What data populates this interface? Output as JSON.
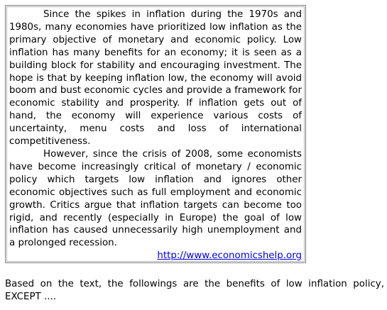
{
  "passage": {
    "paragraphs": [
      "Since the spikes in inflation during the 1970s and 1980s, many economies have prioritized low inflation as the primary objective of monetary and economic policy. Low inflation has many benefits for an economy; it is seen as a building block for stability and encouraging investment. The hope is that by keeping inflation low, the economy will avoid boom and bust economic cycles and provide a framework for economic stability and prosperity. If inflation gets out of hand, the economy will experience various costs of uncertainty, menu costs and loss of international competitiveness.",
      "However, since the crisis of 2008, some economists have become increasingly critical of monetary / economic policy which targets low inflation and ignores other economic objectives such as full employment and economic growth. Critics argue that inflation targets can become too rigid, and recently (especially in Europe) the goal of low inflation has caused unnecessarily high unemployment and a prolonged recession."
    ],
    "source_link": "http://www.economicshelp.org"
  },
  "question": {
    "text": "Based on the text, the followings are the benefits of low inflation policy, EXCEPT ...."
  }
}
